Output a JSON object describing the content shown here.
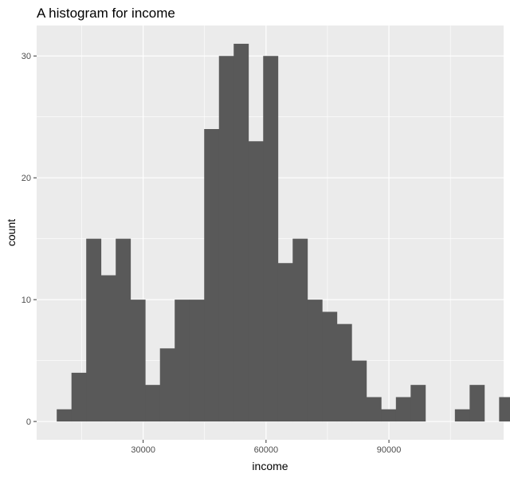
{
  "chart_data": {
    "type": "bar",
    "title": "A histogram for income",
    "xlabel": "income",
    "ylabel": "count",
    "xlim": [
      4000,
      118000
    ],
    "ylim": [
      -1.5,
      32.5
    ],
    "x_ticks": [
      30000,
      60000,
      90000
    ],
    "x_tick_labels": [
      "30000",
      "60000",
      "90000"
    ],
    "y_ticks": [
      0,
      10,
      20,
      30
    ],
    "y_tick_labels": [
      "0",
      "10",
      "20",
      "30"
    ],
    "grid": true,
    "legend": "none",
    "bin_width": 3600,
    "bin_start": 8900,
    "values": [
      1,
      4,
      15,
      12,
      15,
      10,
      3,
      6,
      10,
      10,
      24,
      30,
      31,
      23,
      30,
      13,
      15,
      10,
      9,
      8,
      5,
      2,
      1,
      2,
      3,
      0,
      0,
      1,
      3,
      0,
      2
    ],
    "colors": {
      "panel_background": "#ebebeb",
      "grid_line": "#ffffff",
      "bar_fill": "#595959",
      "tick_mark": "#333333"
    }
  }
}
